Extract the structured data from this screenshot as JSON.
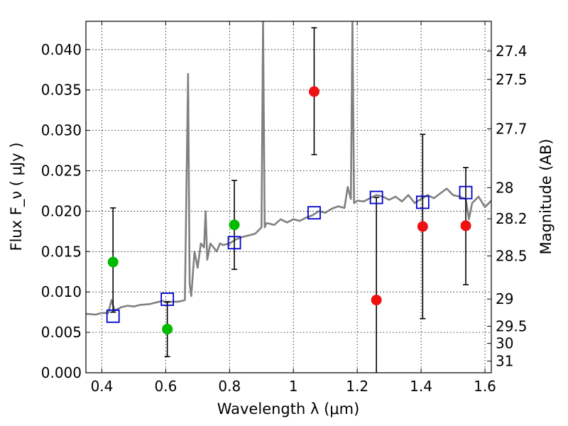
{
  "chart_data": {
    "type": "scatter",
    "xlabel": "Wavelength λ (μm)",
    "ylabel": "Flux F_ν ( μJy )",
    "y2label": "Magnitude (AB)",
    "xlim": [
      0.35,
      1.62
    ],
    "ylim": [
      0.0,
      0.0435
    ],
    "grid": true,
    "x_ticks": [
      {
        "value": 0.4,
        "label": "0.4"
      },
      {
        "value": 0.6,
        "label": "0.6"
      },
      {
        "value": 0.8,
        "label": "0.8"
      },
      {
        "value": 1.0,
        "label": "1"
      },
      {
        "value": 1.2,
        "label": "1.2"
      },
      {
        "value": 1.4,
        "label": "1.4"
      },
      {
        "value": 1.6,
        "label": "1.6"
      }
    ],
    "y_ticks": [
      {
        "value": 0.0,
        "label": "0.000"
      },
      {
        "value": 0.005,
        "label": "0.005"
      },
      {
        "value": 0.01,
        "label": "0.010"
      },
      {
        "value": 0.015,
        "label": "0.015"
      },
      {
        "value": 0.02,
        "label": "0.020"
      },
      {
        "value": 0.025,
        "label": "0.025"
      },
      {
        "value": 0.03,
        "label": "0.030"
      },
      {
        "value": 0.035,
        "label": "0.035"
      },
      {
        "value": 0.04,
        "label": "0.040"
      }
    ],
    "mag_ticks": [
      {
        "value": 27.4,
        "label": "27.4"
      },
      {
        "value": 27.5,
        "label": "27.5"
      },
      {
        "value": 27.7,
        "label": "27.7"
      },
      {
        "value": 28,
        "label": "28"
      },
      {
        "value": 28.2,
        "label": "28.2"
      },
      {
        "value": 28.5,
        "label": "28.5"
      },
      {
        "value": 29,
        "label": "29"
      },
      {
        "value": 29.5,
        "label": "29.5"
      },
      {
        "value": 30,
        "label": "30"
      },
      {
        "value": 31,
        "label": "31"
      }
    ],
    "series": [
      {
        "marker": "line",
        "color": "#808080",
        "x": [
          0.35,
          0.38,
          0.4,
          0.42,
          0.43,
          0.44,
          0.46,
          0.48,
          0.5,
          0.52,
          0.55,
          0.57,
          0.59,
          0.6,
          0.62,
          0.64,
          0.66,
          0.67,
          0.675,
          0.68,
          0.69,
          0.7,
          0.71,
          0.72,
          0.725,
          0.73,
          0.74,
          0.75,
          0.76,
          0.77,
          0.78,
          0.8,
          0.82,
          0.84,
          0.86,
          0.88,
          0.9,
          0.905,
          0.91,
          0.915,
          0.92,
          0.94,
          0.96,
          0.98,
          1.0,
          1.02,
          1.04,
          1.06,
          1.08,
          1.1,
          1.12,
          1.14,
          1.16,
          1.17,
          1.18,
          1.185,
          1.19,
          1.2,
          1.22,
          1.24,
          1.26,
          1.28,
          1.3,
          1.32,
          1.34,
          1.36,
          1.38,
          1.4,
          1.42,
          1.44,
          1.46,
          1.48,
          1.5,
          1.52,
          1.54,
          1.55,
          1.56,
          1.58,
          1.6,
          1.62
        ],
        "y": [
          0.0073,
          0.0072,
          0.0074,
          0.0074,
          0.009,
          0.0077,
          0.0081,
          0.0083,
          0.0082,
          0.0084,
          0.0085,
          0.0087,
          0.0089,
          0.0087,
          0.0088,
          0.0088,
          0.009,
          0.037,
          0.011,
          0.0095,
          0.015,
          0.013,
          0.016,
          0.0155,
          0.02,
          0.014,
          0.016,
          0.0155,
          0.015,
          0.016,
          0.0158,
          0.016,
          0.0165,
          0.0168,
          0.017,
          0.0172,
          0.018,
          0.0435,
          0.018,
          0.0185,
          0.0185,
          0.0183,
          0.019,
          0.0186,
          0.019,
          0.0188,
          0.0192,
          0.0195,
          0.02,
          0.0198,
          0.0203,
          0.0206,
          0.0204,
          0.023,
          0.0215,
          0.0435,
          0.021,
          0.0213,
          0.0212,
          0.0216,
          0.022,
          0.0218,
          0.0214,
          0.0218,
          0.0212,
          0.022,
          0.021,
          0.0215,
          0.022,
          0.0216,
          0.0222,
          0.0228,
          0.022,
          0.0218,
          0.0215,
          0.019,
          0.021,
          0.0218,
          0.0205,
          0.0213
        ]
      },
      {
        "marker": "circle",
        "color": "#00bb00",
        "x": [
          0.435,
          0.605,
          0.815
        ],
        "y": [
          0.0137,
          0.0054,
          0.0183
        ],
        "yerr_low": [
          0.0075,
          0.002,
          0.0128
        ],
        "yerr_high": [
          0.0204,
          0.0088,
          0.0238
        ]
      },
      {
        "marker": "circle",
        "color": "#ee1111",
        "x": [
          1.065,
          1.26,
          1.405,
          1.54
        ],
        "y": [
          0.0348,
          0.009,
          0.0181,
          0.0182
        ],
        "yerr_low": [
          0.027,
          -0.001,
          0.0067,
          0.0109
        ],
        "yerr_high": [
          0.0427,
          0.0217,
          0.0295,
          0.0254
        ]
      },
      {
        "marker": "square",
        "color": "#0000cc",
        "x": [
          0.435,
          0.605,
          0.815,
          1.065,
          1.26,
          1.405,
          1.54
        ],
        "y": [
          0.007,
          0.0091,
          0.0161,
          0.0198,
          0.0217,
          0.0211,
          0.0223
        ]
      }
    ]
  }
}
